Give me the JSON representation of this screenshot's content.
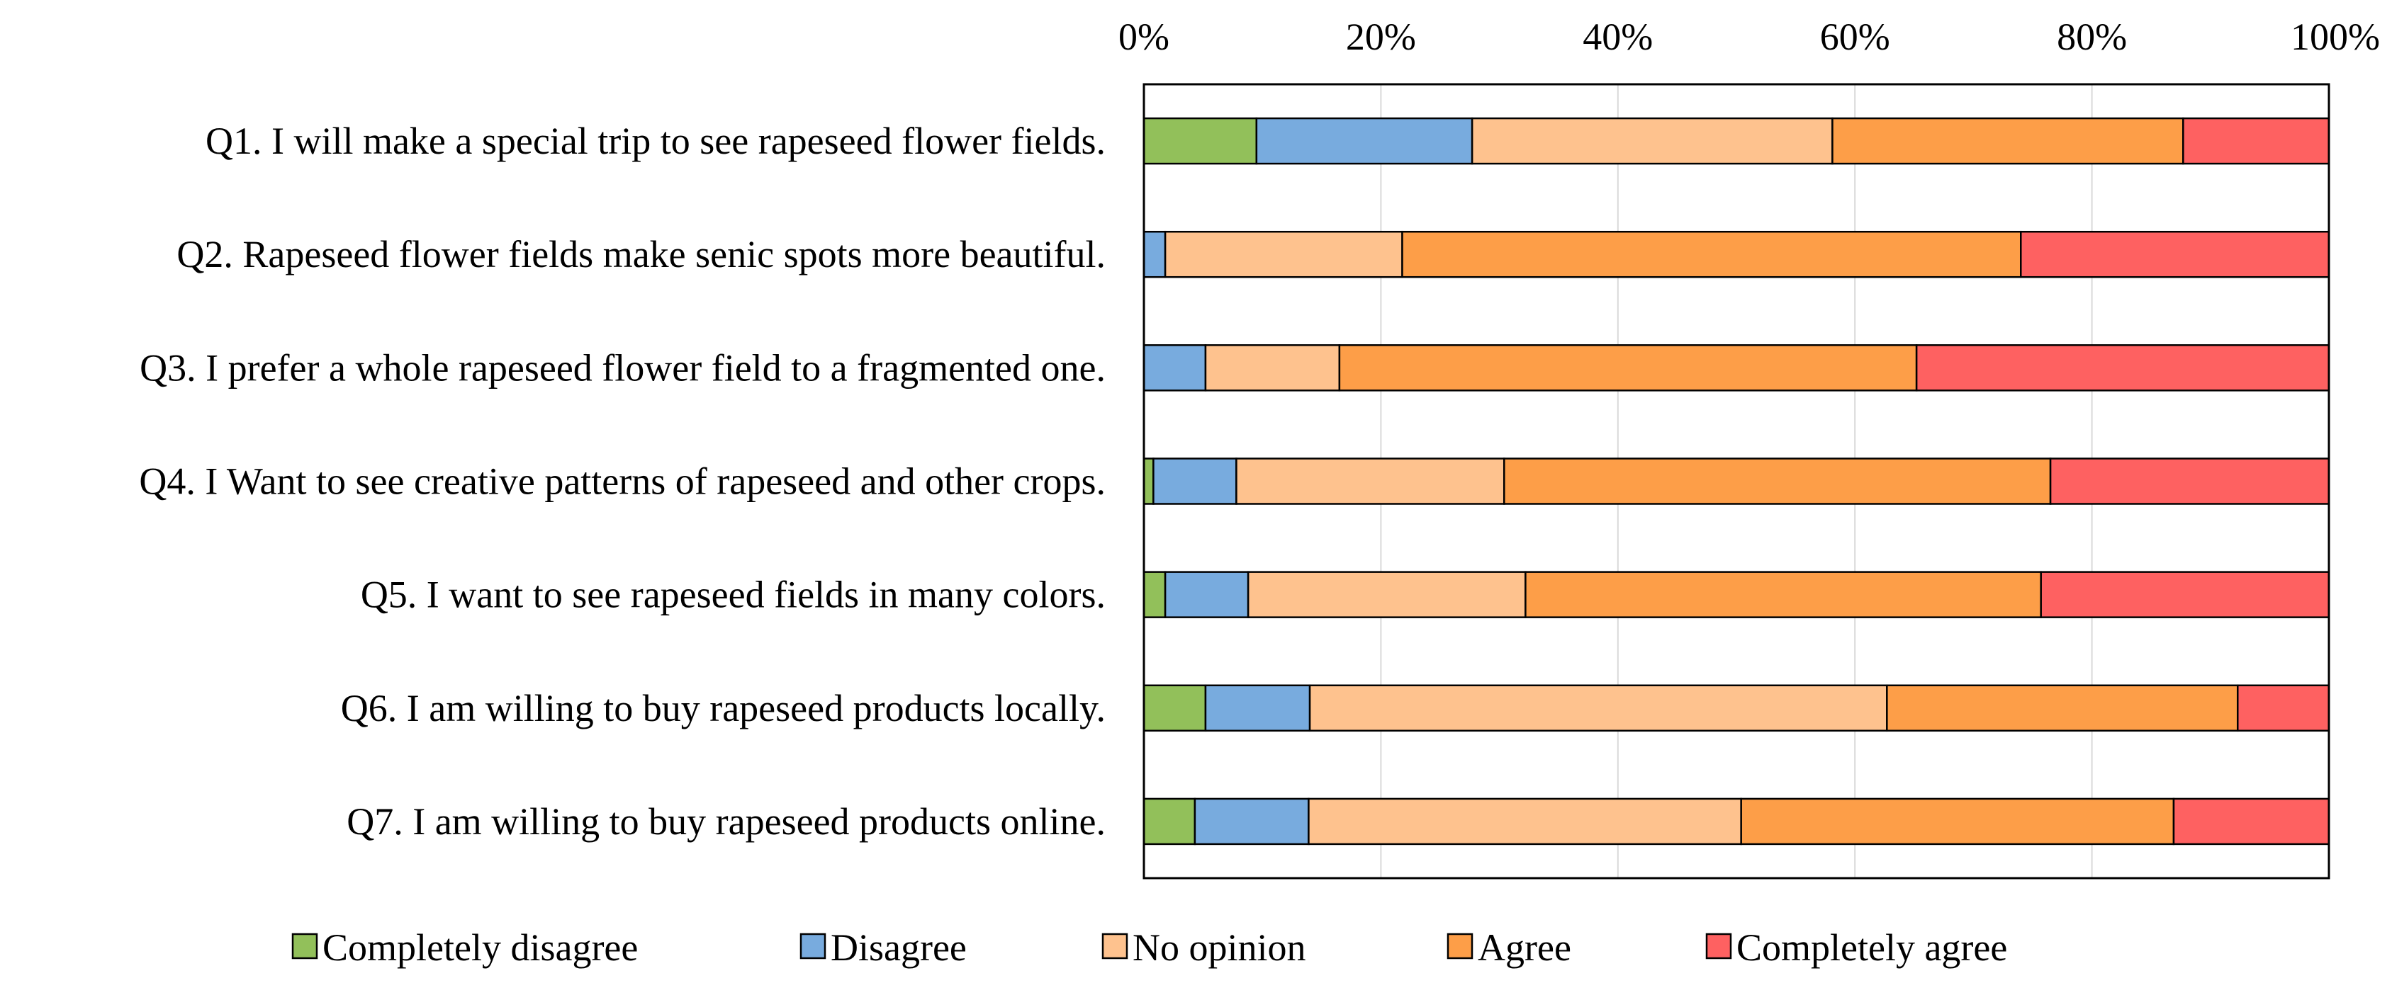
{
  "chart_data": {
    "type": "bar",
    "stacked": true,
    "orientation": "horizontal",
    "percent_scale": true,
    "title": "",
    "xlabel": "",
    "ylabel": "",
    "xlim": [
      0,
      100
    ],
    "x_ticks": [
      "0%",
      "20%",
      "40%",
      "60%",
      "80%",
      "100%"
    ],
    "x_axis_position": "top",
    "grid": true,
    "legend_position": "bottom",
    "categories": [
      "Q1. I will make a special trip to see rapeseed flower fields.",
      "Q2. Rapeseed flower fields make senic spots more beautiful.",
      "Q3. I prefer a whole rapeseed flower field to a fragmented one.",
      "Q4. I Want to see creative patterns of rapeseed and other crops.",
      "Q5. I want to see rapeseed fields in many colors.",
      "Q6. I am willing to buy rapeseed products locally.",
      "Q7. I am willing to buy rapeseed products online."
    ],
    "series": [
      {
        "name": "Completely disagree",
        "color": "#92c05a",
        "values": [
          9.5,
          0,
          0,
          0.8,
          1.8,
          5.2,
          4.3
        ]
      },
      {
        "name": "Disagree",
        "color": "#78abde",
        "values": [
          18.2,
          1.8,
          5.2,
          7.0,
          7.0,
          8.8,
          9.6
        ]
      },
      {
        "name": "No opinion",
        "color": "#fec28e",
        "values": [
          30.4,
          20.0,
          11.3,
          22.6,
          23.4,
          48.7,
          36.5
        ]
      },
      {
        "name": "Agree",
        "color": "#fd9e48",
        "values": [
          29.6,
          52.2,
          48.7,
          46.1,
          43.5,
          29.6,
          36.5
        ]
      },
      {
        "name": "Completely agree",
        "color": "#fe6161",
        "values": [
          12.3,
          26.0,
          34.8,
          23.5,
          24.3,
          7.7,
          13.1
        ]
      }
    ]
  }
}
